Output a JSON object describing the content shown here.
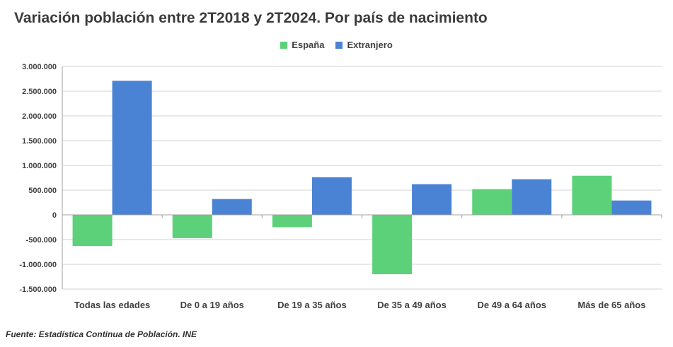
{
  "title": "Variación población entre 2T2018 y 2T2024. Por país de nacimiento",
  "footer": "Fuente: Estadística Continua de Población. INE",
  "colors": {
    "espana": "#5cd179",
    "extranjero": "#4a82d4",
    "grid": "#d0d0d0",
    "axis": "#a0a0a0"
  },
  "chart_data": {
    "type": "bar",
    "title": "Variación población entre 2T2018 y 2T2024. Por país de nacimiento",
    "categories": [
      "Todas las edades",
      "De 0 a 19 años",
      "De 19 a 35 años",
      "De 35 a 49 años",
      "De 49 a 64 años",
      "Más de 65 años"
    ],
    "series": [
      {
        "name": "España",
        "values": [
          -630000,
          -470000,
          -250000,
          -1200000,
          520000,
          790000
        ]
      },
      {
        "name": "Extranjero",
        "values": [
          2710000,
          320000,
          760000,
          620000,
          720000,
          290000
        ]
      }
    ],
    "ylim": [
      -1500000,
      3000000
    ],
    "yticks": [
      3000000,
      2500000,
      2000000,
      1500000,
      1000000,
      500000,
      0,
      -500000,
      -1000000,
      -1500000
    ],
    "ytick_labels": [
      "3.000.000",
      "2.500.000",
      "2.000.000",
      "1.500.000",
      "1.000.000",
      "500.000",
      "0",
      "-500.000",
      "-1.000.000",
      "-1.500.000"
    ],
    "xlabel": "",
    "ylabel": "",
    "grid": true,
    "legend": "top-center"
  }
}
